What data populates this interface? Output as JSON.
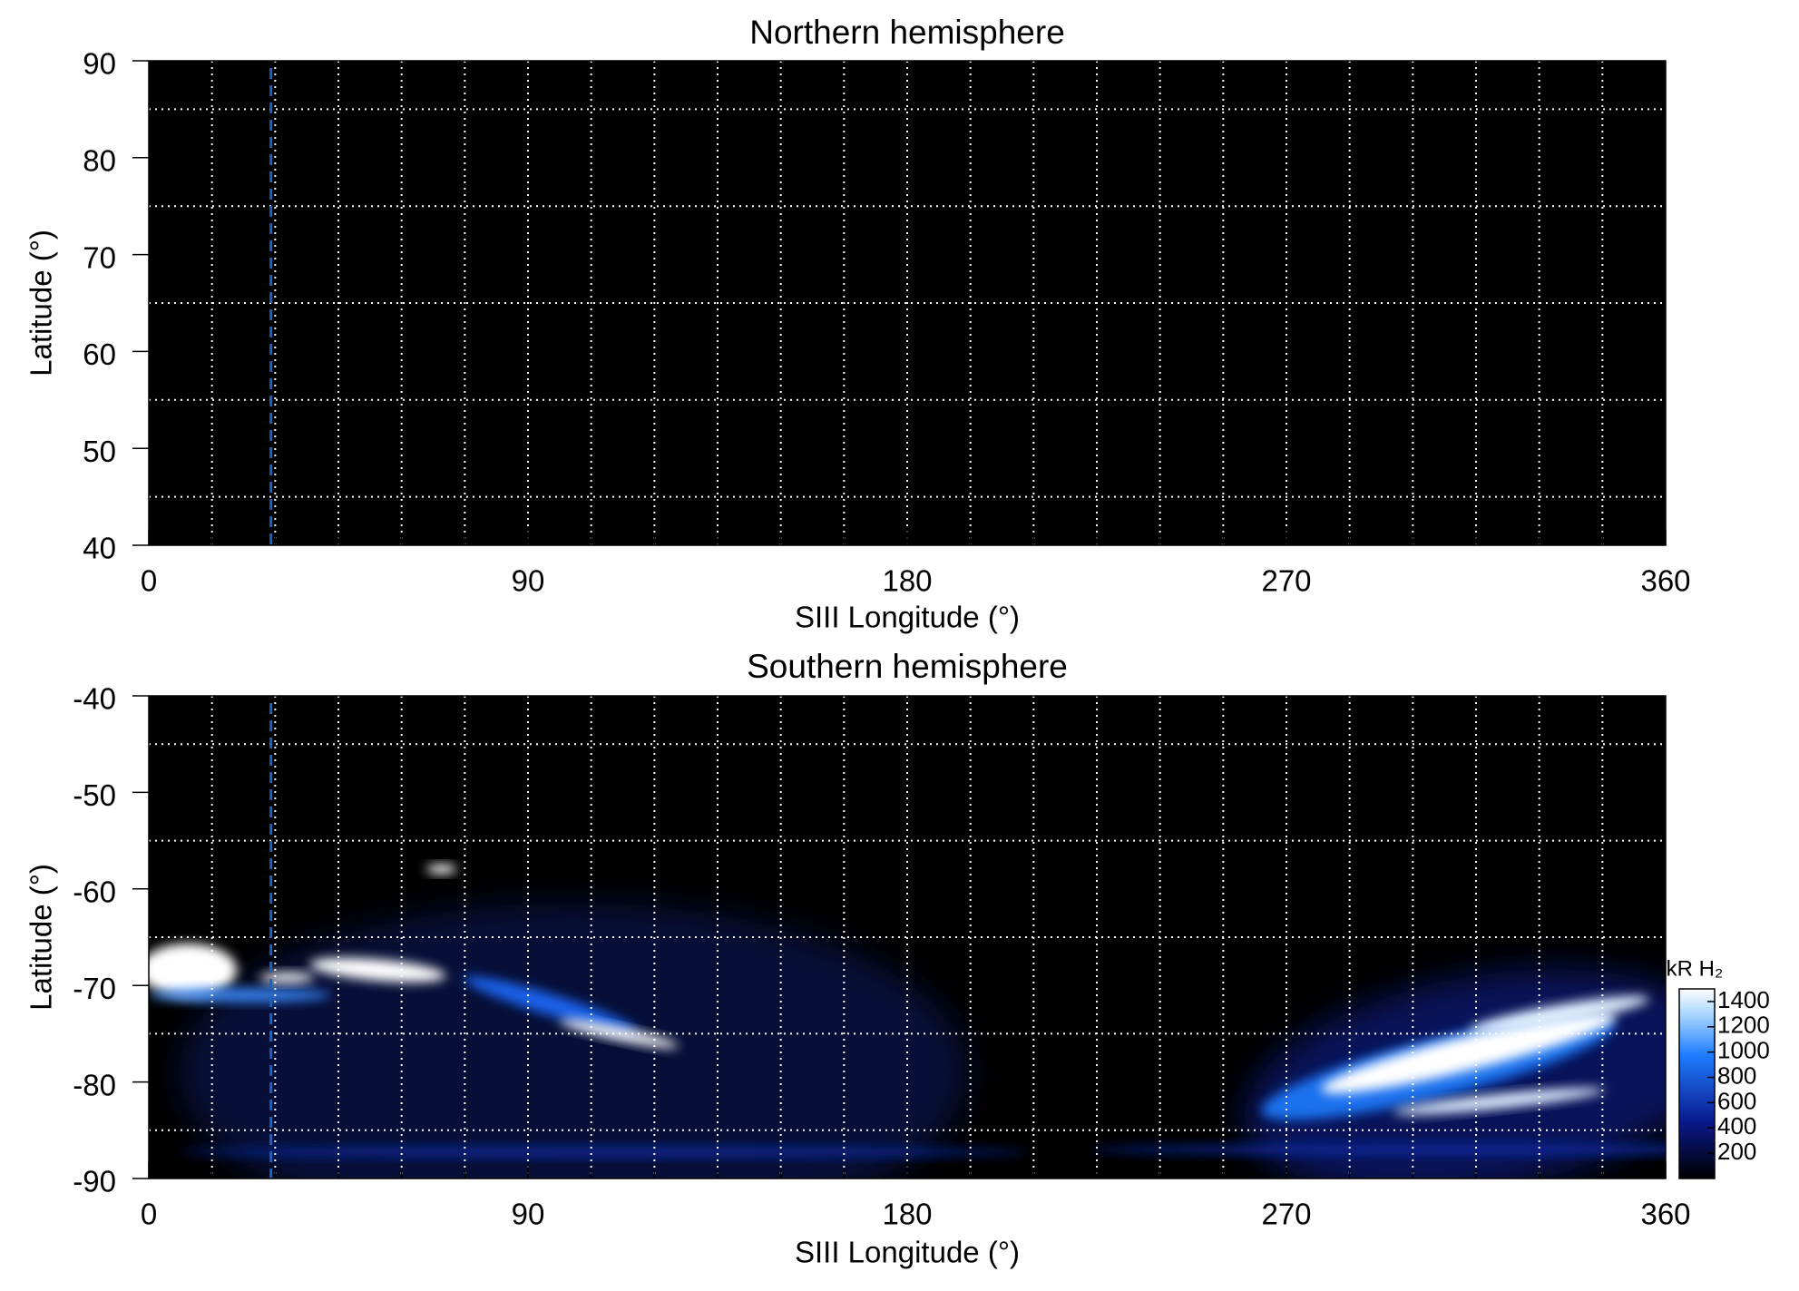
{
  "chart_data": [
    {
      "type": "heatmap",
      "title": "Northern hemisphere",
      "x_label": "SIII Longitude (°)",
      "y_label": "Latitude (°)",
      "xlim": [
        0,
        360
      ],
      "xticks": [
        0,
        90,
        180,
        270,
        360
      ],
      "ylim": [
        40,
        90
      ],
      "yticks": [
        40,
        50,
        60,
        70,
        80,
        90
      ],
      "xgrid": [
        15,
        30,
        45,
        60,
        75,
        90,
        105,
        120,
        135,
        150,
        165,
        180,
        195,
        210,
        225,
        240,
        255,
        270,
        285,
        300,
        315,
        330,
        345
      ],
      "ygrid": [
        45,
        55,
        65,
        75,
        85
      ],
      "marker_x": 29,
      "marker_color": "#1f5fbf"
    },
    {
      "type": "heatmap",
      "title": "Southern hemisphere",
      "x_label": "SIII Longitude (°)",
      "y_label": "Latitude (°)",
      "xlim": [
        0,
        360
      ],
      "xticks": [
        0,
        90,
        180,
        270,
        360
      ],
      "ylim": [
        -90,
        -40
      ],
      "yticks": [
        -90,
        -80,
        -70,
        -60,
        -50,
        -40
      ],
      "xgrid": [
        15,
        30,
        45,
        60,
        75,
        90,
        105,
        120,
        135,
        150,
        165,
        180,
        195,
        210,
        225,
        240,
        255,
        270,
        285,
        300,
        315,
        330,
        345
      ],
      "ygrid": [
        -85,
        -75,
        -65,
        -55,
        -45
      ],
      "marker_x": 29,
      "marker_color": "#1f5fbf",
      "colorbar": {
        "label": "kR H₂",
        "clim": [
          0,
          1500
        ],
        "ticks": [
          200,
          400,
          600,
          800,
          1000,
          1200,
          1400
        ]
      }
    }
  ]
}
